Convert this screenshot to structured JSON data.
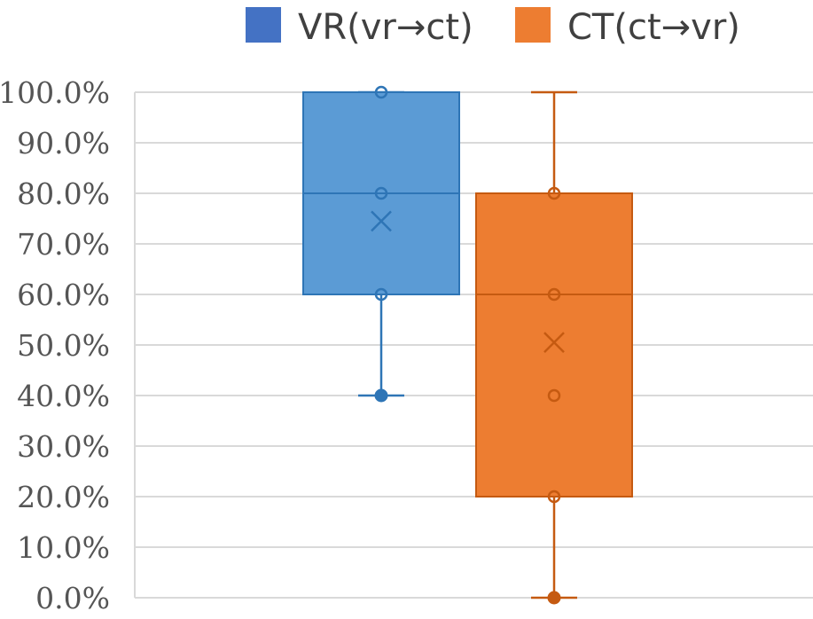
{
  "chart_data": {
    "type": "box",
    "title": "",
    "xlabel": "",
    "ylabel": "",
    "ylim": [
      0,
      100
    ],
    "y_unit": "%",
    "y_ticks": [
      "0.0%",
      "10.0%",
      "20.0%",
      "30.0%",
      "40.0%",
      "50.0%",
      "60.0%",
      "70.0%",
      "80.0%",
      "90.0%",
      "100.0%"
    ],
    "grid": true,
    "legend_position": "top",
    "series": [
      {
        "name": "VR(vr→ct)",
        "color": "#5b9bd5",
        "dark_color": "#2e75b6",
        "min": 40,
        "q1": 60,
        "median": 80,
        "q3": 100,
        "max": 100,
        "mean": 74.5,
        "points": [
          100,
          80,
          60
        ],
        "outliers": [
          40
        ]
      },
      {
        "name": "CT(ct→vr)",
        "color": "#ed7d31",
        "dark_color": "#c55a11",
        "min": 0,
        "q1": 20,
        "median": 60,
        "q3": 80,
        "max": 100,
        "mean": 50.5,
        "points": [
          80,
          60,
          40,
          20
        ],
        "outliers": [
          0
        ]
      }
    ]
  }
}
